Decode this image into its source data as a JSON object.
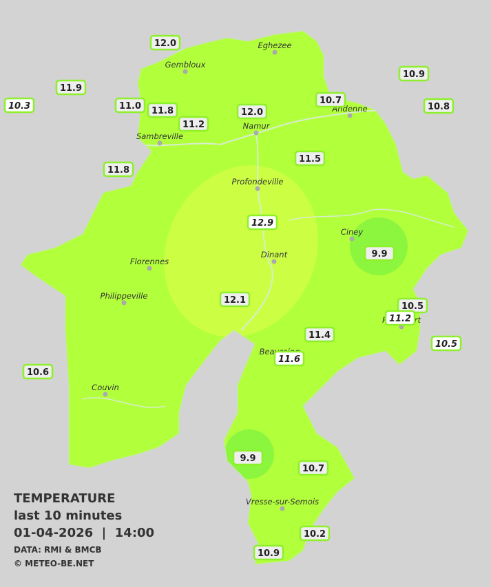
{
  "header": {
    "title": "TEMPERATURE",
    "subtitle": "last 10 minutes",
    "datetime": "01-04-2026  |  14:00",
    "source": "DATA: RMI & BMCB",
    "copyright": "© METEO-BE.NET"
  },
  "towns": [
    "Eghezee",
    "Gembloux",
    "Andenne",
    "Namur",
    "Sambreville",
    "Profondeville",
    "Ciney",
    "Dinant",
    "Florennes",
    "Philippeville",
    "Rochefort",
    "Beauraing",
    "Couvin",
    "Vresse-sur-Semois"
  ],
  "stations": [
    "12.0",
    "11.9",
    "10.9",
    "10.7",
    "10.8",
    "11.0",
    "11.8",
    "12.0",
    "11.2",
    "11.5",
    "11.8",
    "9.9",
    "12.1",
    "10.5",
    "11.4",
    "10.6",
    "9.9",
    "10.7",
    "10.2",
    "10.9",
    "10.3",
    "12.9",
    "11.2",
    "10.5",
    "11.6"
  ]
}
